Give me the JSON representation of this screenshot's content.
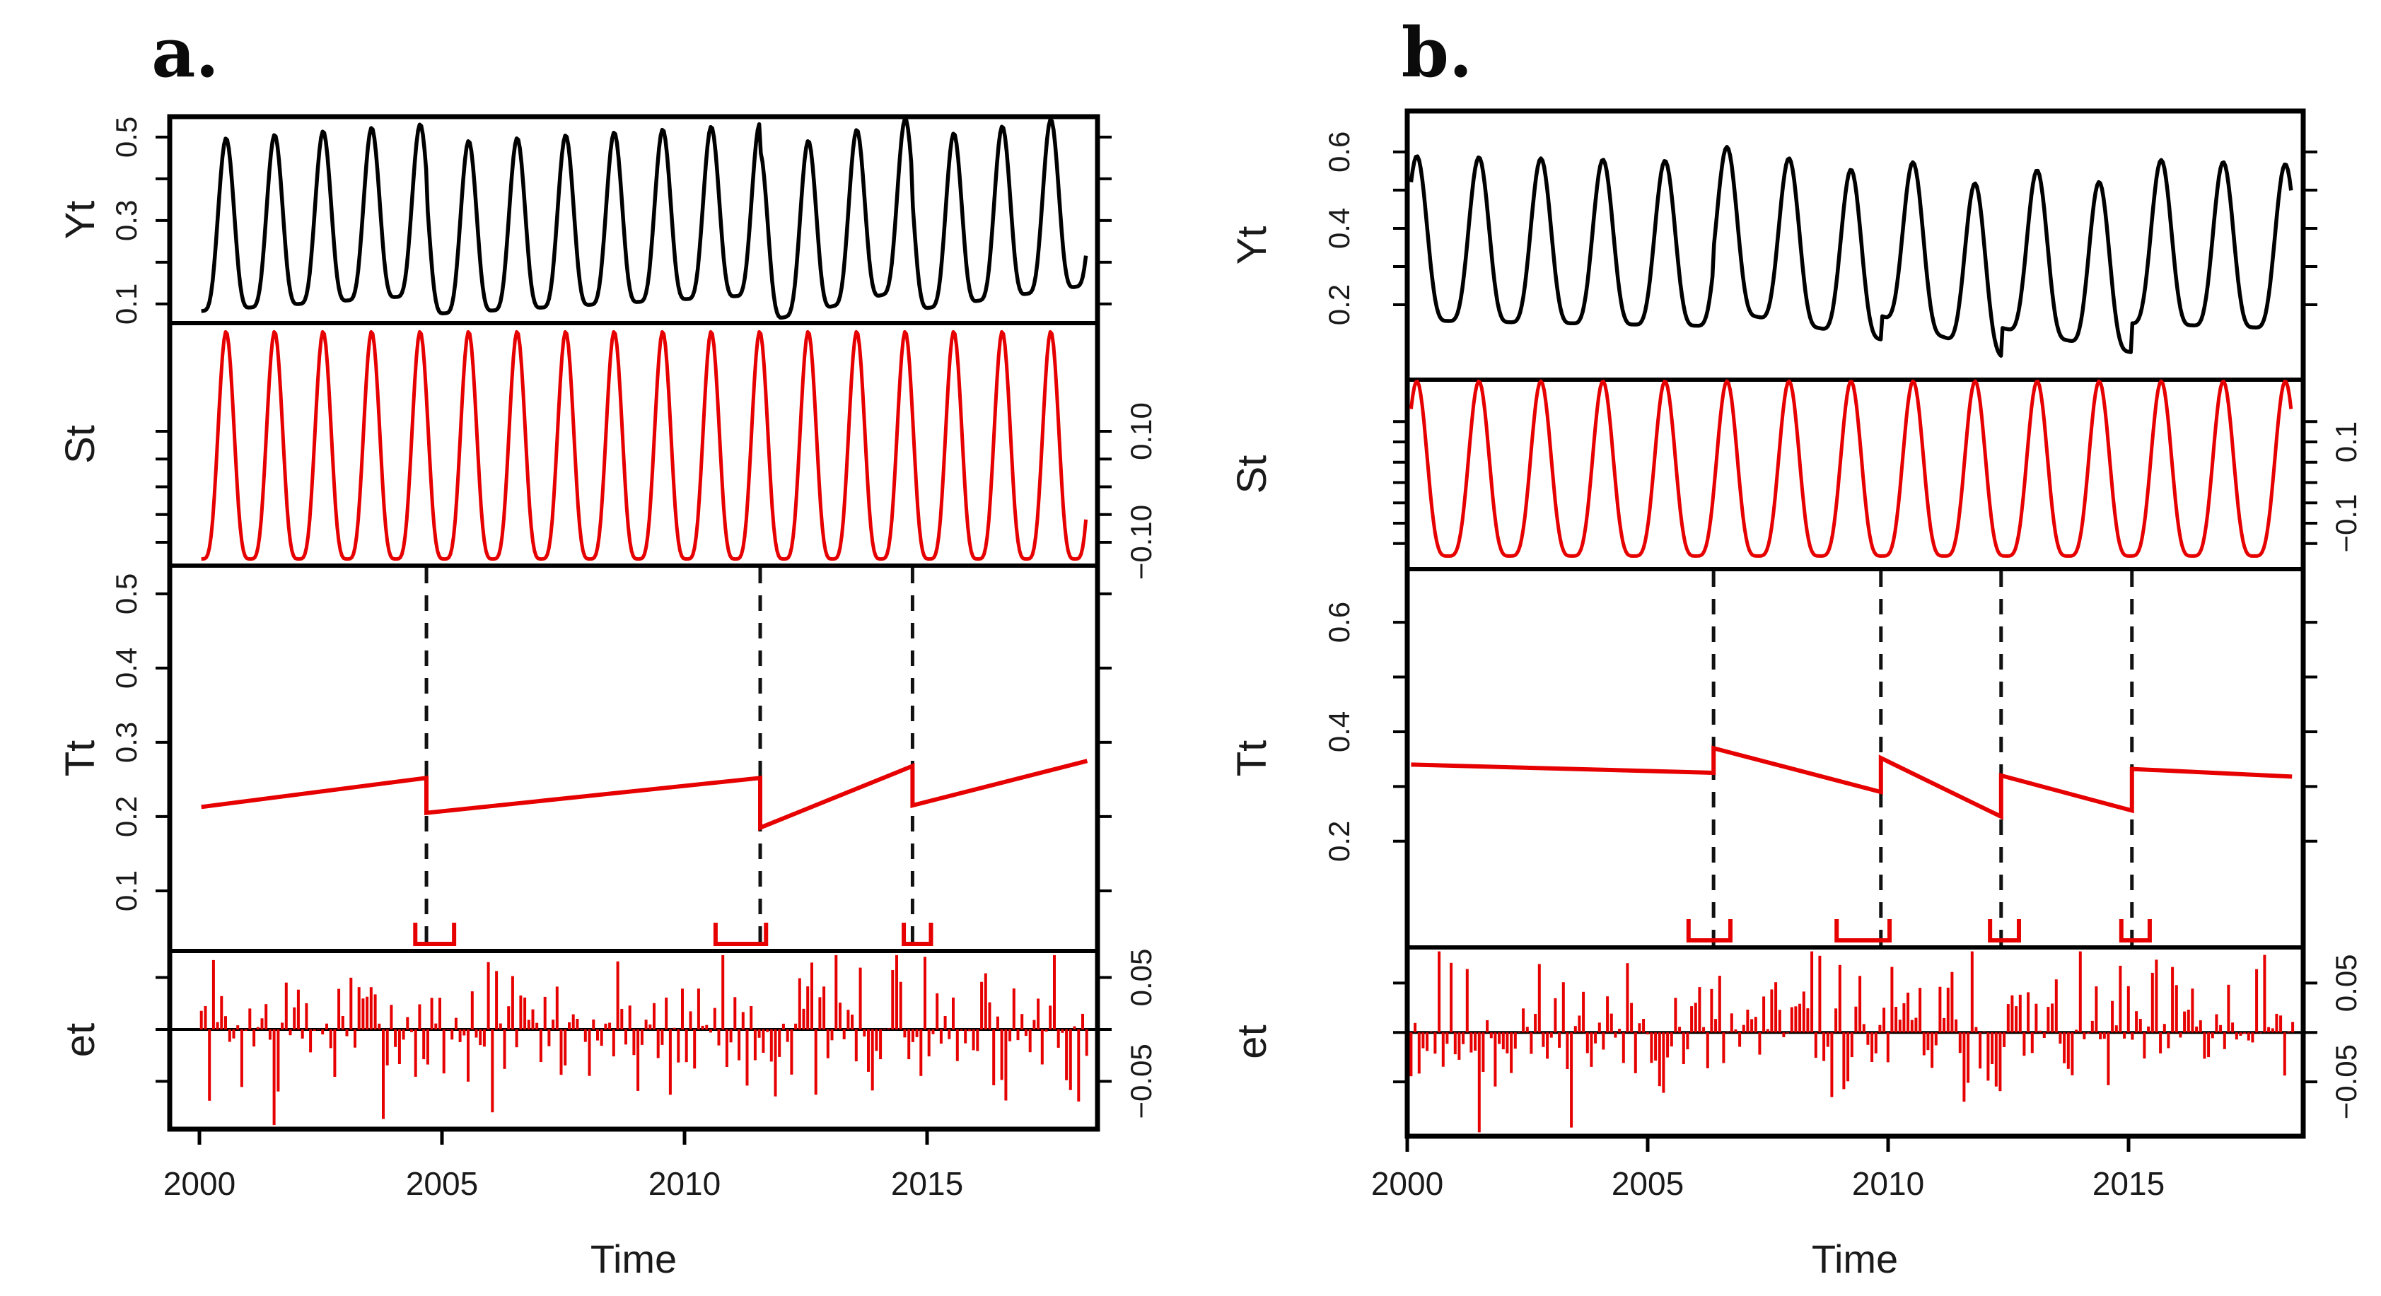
{
  "figure": {
    "background": "#ffffff",
    "series_red": "#e60000",
    "observed_black": "#000000",
    "axis_black": "#000000",
    "panel_a_title": "a.",
    "panel_b_title": "b."
  },
  "chart_data": [
    {
      "type": "line",
      "panel": "a",
      "title": "a.",
      "xlabel": "Time",
      "x_ticks": [
        2000,
        2005,
        2010,
        2015
      ],
      "x_data_range": [
        2000.04,
        2018.3
      ],
      "legend": "none",
      "grid": false,
      "rows": [
        {
          "name": "Yt",
          "kind": "observed",
          "color": "#000000",
          "tick_side": "left",
          "labeled_ticks": [
            0.5,
            0.3,
            0.1
          ],
          "minor_ticks": [
            0.1,
            0.2,
            0.3,
            0.4,
            0.5
          ],
          "ylim": [
            0.054,
            0.549
          ]
        },
        {
          "name": "St",
          "kind": "seasonal",
          "color": "#e60000",
          "tick_side": "right",
          "labeled_ticks": [
            0.1,
            -0.1
          ],
          "minor_ticks": [
            -0.1,
            -0.05,
            0,
            0.05,
            0.1
          ],
          "ylim": [
            -0.142,
            0.295
          ]
        },
        {
          "name": "Tt",
          "kind": "trend",
          "color": "#e60000",
          "tick_side": "left",
          "labeled_ticks": [
            0.5,
            0.4,
            0.3,
            0.2,
            0.1
          ],
          "minor_ticks": [
            0.1,
            0.2,
            0.3,
            0.4,
            0.5
          ],
          "ylim": [
            0.019,
            0.538
          ]
        },
        {
          "name": "et",
          "kind": "remainder",
          "color": "#e60000",
          "tick_side": "right",
          "labeled_ticks": [
            0.05,
            -0.05
          ],
          "minor_ticks": [
            -0.05,
            0,
            0.05
          ],
          "ylim": [
            -0.096,
            0.0755
          ],
          "zero_line": true
        }
      ],
      "seasonal": {
        "period": 1.0,
        "peak_t": 2000.55,
        "shape_power": 2,
        "scale": 0.41,
        "offset": 0.317
      },
      "trend_segments": [
        {
          "t": [
            2000.04,
            2004.68
          ],
          "v": [
            0.213,
            0.252
          ]
        },
        {
          "t": [
            2004.68,
            2011.56
          ],
          "v": [
            0.205,
            0.252
          ]
        },
        {
          "t": [
            2011.56,
            2014.7
          ],
          "v": [
            0.185,
            0.268
          ]
        },
        {
          "t": [
            2014.7,
            2018.3
          ],
          "v": [
            0.215,
            0.275
          ]
        }
      ],
      "breakpoints": [
        2004.68,
        2011.56,
        2014.7
      ],
      "break_intervals": [
        [
          2004.45,
          2005.25
        ],
        [
          2010.64,
          2011.68
        ],
        [
          2014.52,
          2015.08
        ]
      ],
      "residuals": {
        "n_per_year": 12,
        "t_start": 2000.04,
        "t_end": 2018.3,
        "amplitude": 0.05,
        "seed": 7,
        "forced": [
          {
            "t": 2001.58,
            "v": -0.093
          },
          {
            "t": 2010.83,
            "v": 0.092
          },
          {
            "t": 2014.4,
            "v": 0.084
          },
          {
            "t": 2017.6,
            "v": 0.079
          }
        ]
      }
    },
    {
      "type": "line",
      "panel": "b",
      "title": "b.",
      "xlabel": "Time",
      "x_ticks": [
        2000,
        2005,
        2010,
        2015
      ],
      "x_data_range": [
        2000.08,
        2018.4
      ],
      "legend": "none",
      "grid": false,
      "rows": [
        {
          "name": "Yt",
          "kind": "observed",
          "color": "#000000",
          "tick_side": "left",
          "labeled_ticks": [
            0.6,
            0.4,
            0.2
          ],
          "minor_ticks": [
            0.2,
            0.3,
            0.4,
            0.5,
            0.6
          ],
          "ylim": [
            0.004,
            0.707
          ]
        },
        {
          "name": "St",
          "kind": "seasonal",
          "color": "#e60000",
          "tick_side": "right",
          "labeled_ticks": [
            0.1,
            -0.1
          ],
          "minor_ticks": [
            -0.15,
            -0.1,
            -0.05,
            0,
            0.05,
            0.1,
            0.15
          ],
          "ylim": [
            -0.213,
            0.253
          ]
        },
        {
          "name": "Tt",
          "kind": "trend",
          "color": "#e60000",
          "tick_side": "left",
          "labeled_ticks": [
            0.6,
            0.4,
            0.2
          ],
          "minor_ticks": [
            0.2,
            0.3,
            0.4,
            0.5,
            0.6
          ],
          "ylim": [
            0.006,
            0.697
          ]
        },
        {
          "name": "et",
          "kind": "remainder",
          "color": "#e60000",
          "tick_side": "right",
          "labeled_ticks": [
            0.05,
            -0.05
          ],
          "minor_ticks": [
            -0.05,
            0,
            0.05
          ],
          "ylim": [
            -0.105,
            0.086
          ],
          "zero_line": true
        }
      ],
      "seasonal": {
        "period": 1.29,
        "peak_t": 2000.2,
        "shape_power": 2,
        "scale": 0.43,
        "offset": 0.42
      },
      "trend_segments": [
        {
          "t": [
            2000.08,
            2006.37
          ],
          "v": [
            0.34,
            0.325
          ]
        },
        {
          "t": [
            2006.37,
            2009.85
          ],
          "v": [
            0.37,
            0.29
          ]
        },
        {
          "t": [
            2009.85,
            2012.35
          ],
          "v": [
            0.352,
            0.245
          ]
        },
        {
          "t": [
            2012.35,
            2015.07
          ],
          "v": [
            0.32,
            0.256
          ]
        },
        {
          "t": [
            2015.07,
            2018.4
          ],
          "v": [
            0.332,
            0.318
          ]
        }
      ],
      "breakpoints": [
        2006.37,
        2009.85,
        2012.35,
        2015.07
      ],
      "break_intervals": [
        [
          2005.85,
          2006.72
        ],
        [
          2008.93,
          2010.03
        ],
        [
          2012.12,
          2012.72
        ],
        [
          2014.85,
          2015.44
        ]
      ],
      "residuals": {
        "n_per_year": 12,
        "t_start": 2000.08,
        "t_end": 2018.4,
        "amplitude": 0.052,
        "seed": 11,
        "forced": [
          {
            "t": 2001.5,
            "v": -0.102
          },
          {
            "t": 2000.67,
            "v": 0.088
          },
          {
            "t": 2008.4,
            "v": 0.086
          },
          {
            "t": 2011.75,
            "v": 0.083
          }
        ]
      }
    }
  ]
}
